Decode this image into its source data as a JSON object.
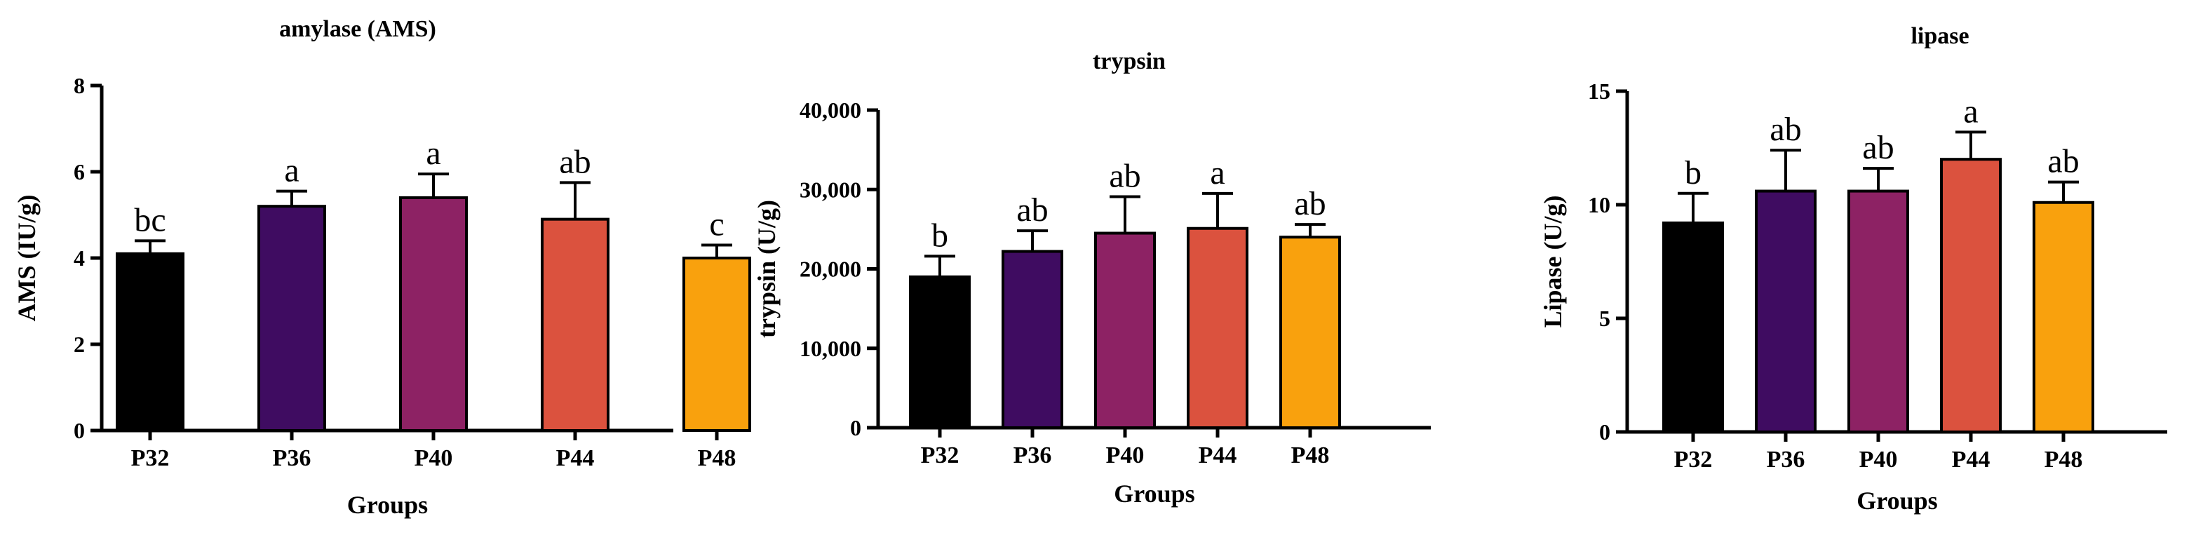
{
  "chart_data": [
    {
      "type": "bar",
      "title": "amylase (AMS)",
      "xlabel": "Groups",
      "ylabel": "AMS (IU/g)",
      "categories": [
        "P32",
        "P36",
        "P40",
        "P44",
        "P48"
      ],
      "values": [
        4.1,
        5.2,
        5.4,
        4.9,
        4.0
      ],
      "errors": [
        0.3,
        0.35,
        0.55,
        0.85,
        0.3
      ],
      "significance": [
        "bc",
        "a",
        "a",
        "ab",
        "c"
      ],
      "ylim": [
        0,
        8
      ],
      "yticks": [
        0,
        2,
        4,
        6,
        8
      ],
      "ytick_labels": [
        "0",
        "2",
        "4",
        "6",
        "8"
      ]
    },
    {
      "type": "bar",
      "title": "trypsin",
      "xlabel": "Groups",
      "ylabel": "trypsin (U/g)",
      "categories": [
        "P32",
        "P36",
        "P40",
        "P44",
        "P48"
      ],
      "values": [
        19000,
        22200,
        24500,
        25100,
        24000
      ],
      "errors": [
        2600,
        2600,
        4600,
        4400,
        1600
      ],
      "significance": [
        "b",
        "ab",
        "ab",
        "a",
        "ab"
      ],
      "ylim": [
        0,
        40000
      ],
      "yticks": [
        0,
        10000,
        20000,
        30000,
        40000
      ],
      "ytick_labels": [
        "0",
        "10,000",
        "20,000",
        "30,000",
        "40,000"
      ]
    },
    {
      "type": "bar",
      "title": "lipase",
      "xlabel": "Groups",
      "ylabel": "Lipase (U/g)",
      "categories": [
        "P32",
        "P36",
        "P40",
        "P44",
        "P48"
      ],
      "values": [
        9.2,
        10.6,
        10.6,
        12.0,
        10.1
      ],
      "errors": [
        1.3,
        1.8,
        1.0,
        1.2,
        0.9
      ],
      "significance": [
        "b",
        "ab",
        "ab",
        "a",
        "ab"
      ],
      "ylim": [
        0,
        15
      ],
      "yticks": [
        0,
        5,
        10,
        15
      ],
      "ytick_labels": [
        "0",
        "5",
        "10",
        "15"
      ]
    }
  ],
  "colors": {
    "bars": [
      "#000000",
      "#3f0c61",
      "#8d2264",
      "#db523e",
      "#f9a10d"
    ],
    "axis": "#000000"
  }
}
